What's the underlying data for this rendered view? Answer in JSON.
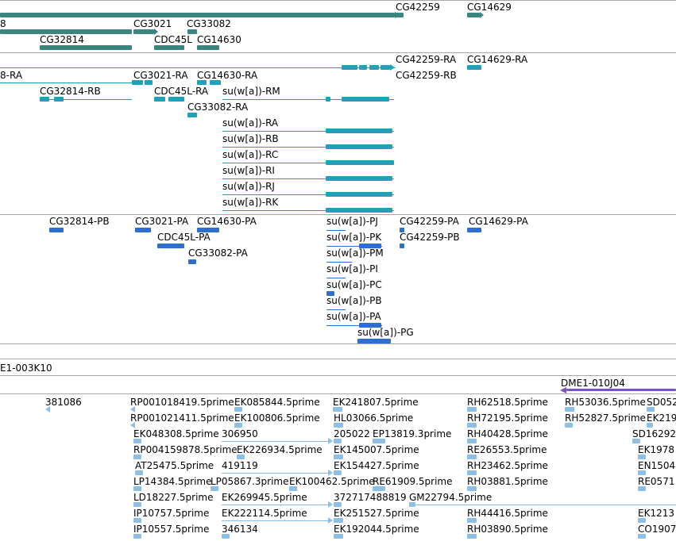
{
  "colors": {
    "gene": "#3a8580",
    "transcript": "#1ea2b8",
    "protein": "#2d6fd1",
    "est": "#8dbfe5",
    "clone": "#7a55b8",
    "track_border": "#a9a9a9"
  },
  "tracks": {
    "genes": {
      "labels": [
        "8",
        "CG3021",
        "CG33082",
        "CG42259",
        "CG14629",
        "CG32814",
        "CDC45L",
        "CG14630"
      ]
    },
    "transcripts": {
      "labels": [
        "8-RA",
        "CG3021-RA",
        "CG14630-RA",
        "CG42259-RA",
        "CG14629-RA",
        "CG42259-RB",
        "CG32814-RB",
        "CDC45L-RA",
        "su(w[a])-RM",
        "CG33082-RA",
        "su(w[a])-RA",
        "su(w[a])-RB",
        "su(w[a])-RC",
        "su(w[a])-RI",
        "su(w[a])-RJ",
        "su(w[a])-RK"
      ]
    },
    "proteins": {
      "labels": [
        "CG32814-PB",
        "CG3021-PA",
        "CG14630-PA",
        "su(w[a])-PJ",
        "CG42259-PA",
        "CG14629-PA",
        "CDC45L-PA",
        "su(w[a])-PK",
        "CG42259-PB",
        "CG33082-PA",
        "su(w[a])-PM",
        "su(w[a])-PI",
        "su(w[a])-PC",
        "su(w[a])-PB",
        "su(w[a])-PA",
        "su(w[a])-PG"
      ]
    },
    "clones": {
      "labels": [
        "E1-003K10",
        "DME1-010J04"
      ]
    },
    "ests": {
      "labels": [
        "381086",
        "RP001018419.5prime",
        "EK085844.5prime",
        "EK241807.5prime",
        "RH62518.5prime",
        "RH53036.5prime",
        "SD052",
        "RP001021411.5prime",
        "EK100806.5prime",
        "HL03066.5prime",
        "RH72195.5prime",
        "RH52827.5prime",
        "EK219",
        "EK048308.5prime",
        "306950",
        "205022",
        "EP13819.3prime",
        "RH40428.5prime",
        "SD16292",
        "RP004159878.5prime",
        "EK226934.5prime",
        "EK145007.5prime",
        "RE26553.5prime",
        "EK1978",
        "AT25475.5prime",
        "419119",
        "EK154427.5prime",
        "RH23462.5prime",
        "EN1504",
        "LP14384.5prime",
        "LP05867.3prime",
        "EK100462.5prime",
        "RE61909.5prime",
        "RH03881.5prime",
        "RE0571",
        "LD18227.5prime",
        "EK269945.5prime",
        "372717488819",
        "GM22794.5prime",
        "EK1213",
        "IP10757.5prime",
        "EK222114.5prime",
        "EK251527.5prime",
        "RH44416.5prime",
        "IP10557.5prime",
        "346134",
        "EK192044.5prime",
        "RH03890.5prime",
        "CO1907"
      ]
    }
  }
}
